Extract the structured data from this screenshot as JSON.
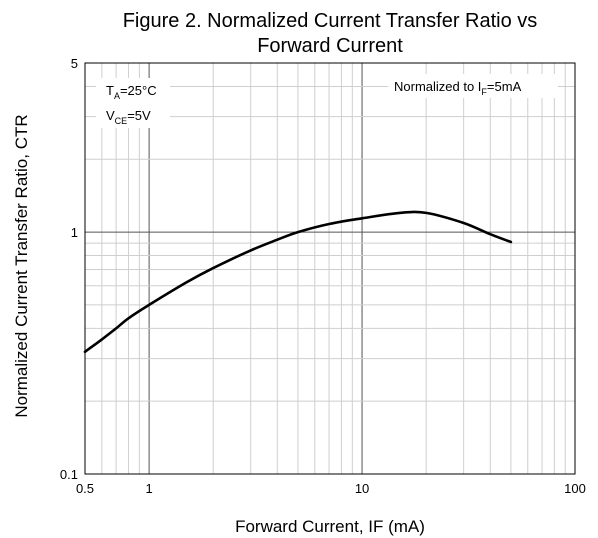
{
  "chart_data": {
    "type": "line",
    "title_lines": [
      "Figure 2. Normalized Current Transfer Ratio vs",
      "Forward Current"
    ],
    "xlabel": "Forward Current, IF (mA)",
    "ylabel": "Normalized Current Transfer Ratio, CTR",
    "x_scale": "log",
    "y_scale": "log",
    "xlim": [
      0.5,
      100
    ],
    "ylim": [
      0.1,
      5
    ],
    "x_ticks": [
      {
        "value": 0.5,
        "label": "0.5"
      },
      {
        "value": 1,
        "label": "1"
      },
      {
        "value": 10,
        "label": "10"
      },
      {
        "value": 100,
        "label": "100"
      }
    ],
    "y_ticks": [
      {
        "value": 0.1,
        "label": "0.1"
      },
      {
        "value": 1,
        "label": "1"
      },
      {
        "value": 5,
        "label": "5"
      }
    ],
    "grid": "on (major and minor)",
    "annotations": {
      "conditions": [
        {
          "main": "T",
          "sub": "A",
          "rest": "=25°C"
        },
        {
          "main": "V",
          "sub": "CE",
          "rest": "=5V"
        }
      ],
      "normalization": {
        "main": "Normalized to I",
        "sub": "F",
        "rest": "=5mA"
      }
    },
    "series": [
      {
        "x": [
          0.5,
          0.6,
          0.7,
          0.8,
          1,
          1.5,
          2,
          3,
          4,
          5,
          7,
          10,
          15,
          20,
          30,
          40,
          50
        ],
        "y": [
          0.32,
          0.36,
          0.4,
          0.44,
          0.5,
          0.62,
          0.71,
          0.84,
          0.93,
          1.0,
          1.08,
          1.14,
          1.2,
          1.2,
          1.09,
          0.98,
          0.91
        ]
      }
    ]
  }
}
